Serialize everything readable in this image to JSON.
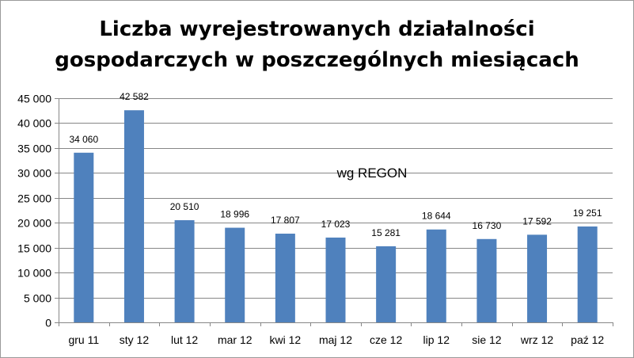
{
  "chart_data": {
    "type": "bar",
    "title_lines": [
      "Liczba wyrejestrowanych działalności",
      "gospodarczych w poszczególnych miesiącach"
    ],
    "annotation": "wg REGON",
    "categories": [
      "gru 11",
      "sty 12",
      "lut 12",
      "mar 12",
      "kwi 12",
      "maj 12",
      "cze 12",
      "lip 12",
      "sie 12",
      "wrz 12",
      "paź 12"
    ],
    "values": [
      34060,
      42582,
      20510,
      18996,
      17807,
      17023,
      15281,
      18644,
      16730,
      17592,
      19251
    ],
    "value_labels": [
      "34 060",
      "42 582",
      "20 510",
      "18 996",
      "17 807",
      "17 023",
      "15 281",
      "18 644",
      "16 730",
      "17 592",
      "19 251"
    ],
    "y_ticks": [
      0,
      5000,
      10000,
      15000,
      20000,
      25000,
      30000,
      35000,
      40000,
      45000
    ],
    "y_tick_labels": [
      "0",
      "5 000",
      "10 000",
      "15 000",
      "20 000",
      "25 000",
      "30 000",
      "35 000",
      "40 000",
      "45 000"
    ],
    "ylim": [
      0,
      45000
    ],
    "grid": true,
    "bar_color": "#4f81bd",
    "grid_color": "#878787"
  }
}
